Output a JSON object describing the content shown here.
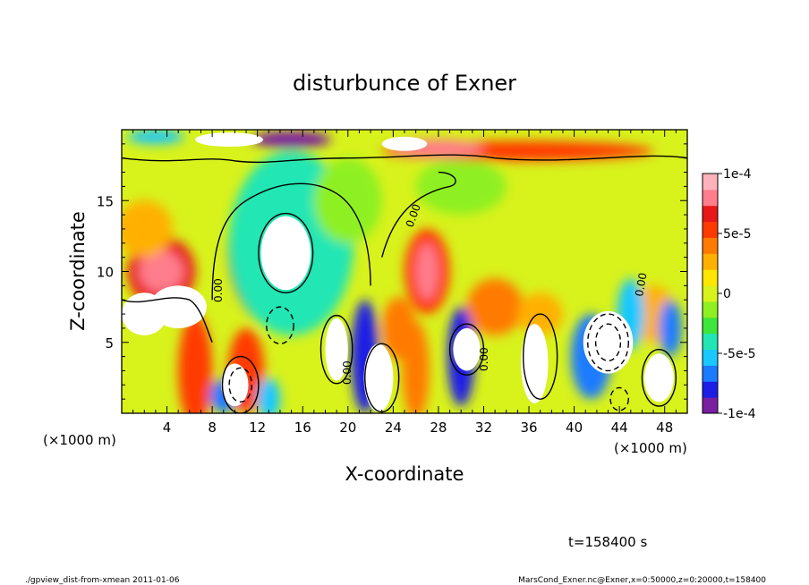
{
  "chart_data": {
    "type": "heatmap",
    "title": "disturbunce of Exner",
    "xlabel": "X-coordinate",
    "ylabel": "Z-coordinate",
    "x_unit_left": "(×1000 m)",
    "x_unit_right": "(×1000 m)",
    "x_ticks": [
      "4",
      "8",
      "12",
      "16",
      "20",
      "24",
      "28",
      "32",
      "36",
      "40",
      "44",
      "48"
    ],
    "y_ticks": [
      "5",
      "10",
      "15"
    ],
    "xlim": [
      0,
      50
    ],
    "ylim": [
      0,
      20
    ],
    "colorbar": {
      "range": [
        -0.0001,
        0.0001
      ],
      "tick_labels": [
        "1e-4",
        "5e-5",
        "0",
        "-5e-5",
        "-1e-4"
      ],
      "tick_values": [
        0.0001,
        5e-05,
        0,
        -5e-05,
        -0.0001
      ],
      "colors": [
        "#7a1fa2",
        "#1c1ee6",
        "#1a7bff",
        "#19c8ff",
        "#21e6b4",
        "#3ee53b",
        "#8ef020",
        "#d8f21c",
        "#ffe600",
        "#ffb000",
        "#ff7a00",
        "#ff3a00",
        "#e81818",
        "#ff7d8c",
        "#ffb2bc"
      ]
    },
    "contour_labels": [
      "0.00",
      "0.00",
      "0.00",
      "0.00",
      "0.00"
    ],
    "time_label": "t=158400 s",
    "footer_left": "./gpview_dist-from-xmean  2011-01-06",
    "footer_right": "MarsCond_Exner.nc@Exner,x=0:50000,z=0:20000,t=158400"
  }
}
